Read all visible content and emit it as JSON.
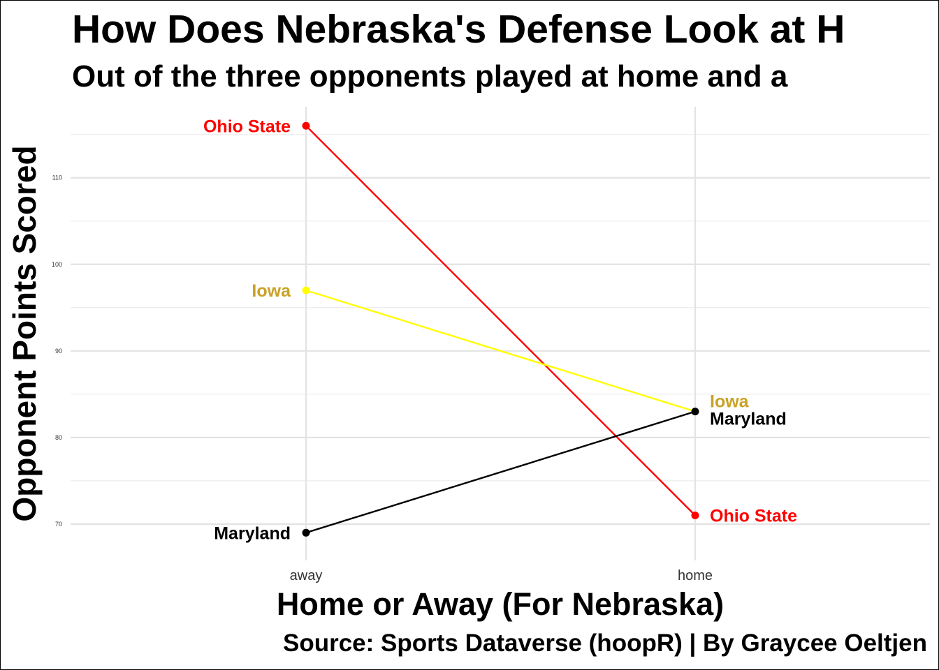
{
  "title": "How Does Nebraska's Defense Look at H",
  "subtitle": "Out of the three opponents played at home and a",
  "caption": "Source: Sports Dataverse (hoopR) | By Graycee Oeltjen",
  "chart_data": {
    "type": "line",
    "xlabel": "Home or Away (For Nebraska)",
    "ylabel": "Opponent Points Scored",
    "categories": [
      "away",
      "home"
    ],
    "y_ticks": [
      70,
      80,
      90,
      100,
      110
    ],
    "ylim": [
      65.8,
      118.2
    ],
    "grid": true,
    "series": [
      {
        "name": "Ohio State",
        "values": [
          116,
          71
        ],
        "color": "#ff0000",
        "label_color": "#ff0000"
      },
      {
        "name": "Iowa",
        "values": [
          97,
          83
        ],
        "color": "#ffff00",
        "label_color": "#c9a227"
      },
      {
        "name": "Maryland",
        "values": [
          69,
          83
        ],
        "color": "#000000",
        "label_color": "#000000"
      }
    ]
  }
}
